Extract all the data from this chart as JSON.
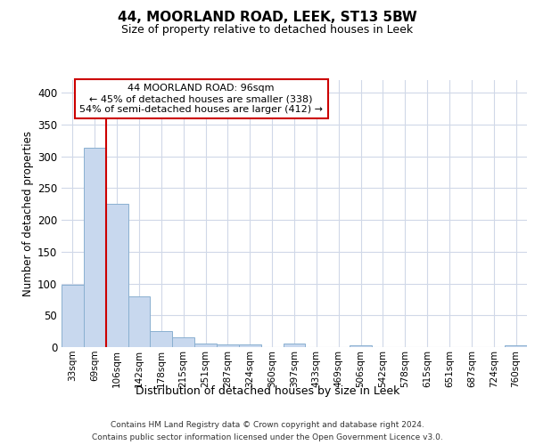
{
  "title": "44, MOORLAND ROAD, LEEK, ST13 5BW",
  "subtitle": "Size of property relative to detached houses in Leek",
  "xlabel": "Distribution of detached houses by size in Leek",
  "ylabel": "Number of detached properties",
  "bins": [
    "33sqm",
    "69sqm",
    "106sqm",
    "142sqm",
    "178sqm",
    "215sqm",
    "251sqm",
    "287sqm",
    "324sqm",
    "360sqm",
    "397sqm",
    "433sqm",
    "469sqm",
    "506sqm",
    "542sqm",
    "578sqm",
    "615sqm",
    "651sqm",
    "687sqm",
    "724sqm",
    "760sqm"
  ],
  "values": [
    98,
    313,
    225,
    80,
    25,
    15,
    5,
    4,
    4,
    0,
    6,
    0,
    0,
    3,
    0,
    0,
    0,
    0,
    0,
    0,
    3
  ],
  "bar_color": "#c8d8ee",
  "bar_edge_color": "#8ab0d0",
  "grid_color": "#d0d8e8",
  "annotation_label": "44 MOORLAND ROAD: 96sqm",
  "annotation_line1": "← 45% of detached houses are smaller (338)",
  "annotation_line2": "54% of semi-detached houses are larger (412) →",
  "annotation_box_color": "#ffffff",
  "annotation_border_color": "#cc0000",
  "red_line_color": "#cc0000",
  "footer1": "Contains HM Land Registry data © Crown copyright and database right 2024.",
  "footer2": "Contains public sector information licensed under the Open Government Licence v3.0.",
  "ylim": [
    0,
    420
  ],
  "yticks": [
    0,
    50,
    100,
    150,
    200,
    250,
    300,
    350,
    400
  ],
  "background_color": "#ffffff",
  "red_line_bin_index": 2
}
